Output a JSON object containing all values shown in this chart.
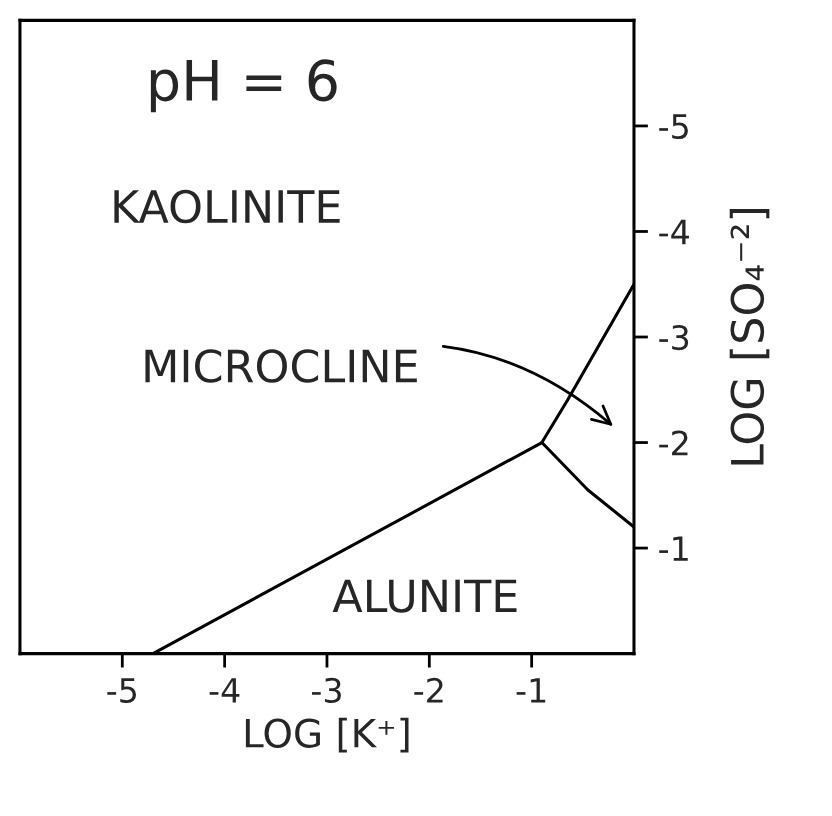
{
  "chart_data": {
    "type": "line",
    "title": "pH = 6",
    "xlabel": "LOG [K⁺]",
    "ylabel": "LOG [SO₄⁻²]",
    "series": [
      {
        "x": [
          -4.7,
          -0.9
        ],
        "values": [
          0,
          -2.0
        ],
        "color": "#000000"
      },
      {
        "x": [
          -0.9,
          -0.65,
          0
        ],
        "values": [
          -2.0,
          -2.4,
          -3.5
        ],
        "color": "#000000"
      },
      {
        "x": [
          -0.9,
          -0.45,
          0
        ],
        "values": [
          -2.0,
          -1.55,
          -1.2
        ],
        "color": "#000000"
      }
    ],
    "xlim": [
      -6,
      0
    ],
    "ylim": [
      0,
      -6
    ],
    "xticks": [
      -5,
      -4,
      -3,
      -2,
      -1
    ],
    "yticks": [
      -5,
      -4,
      -3,
      -2,
      -1
    ],
    "annotations": [
      "KAOLINITE",
      "MICROCLINE",
      "ALUNITE"
    ],
    "grid": false
  }
}
